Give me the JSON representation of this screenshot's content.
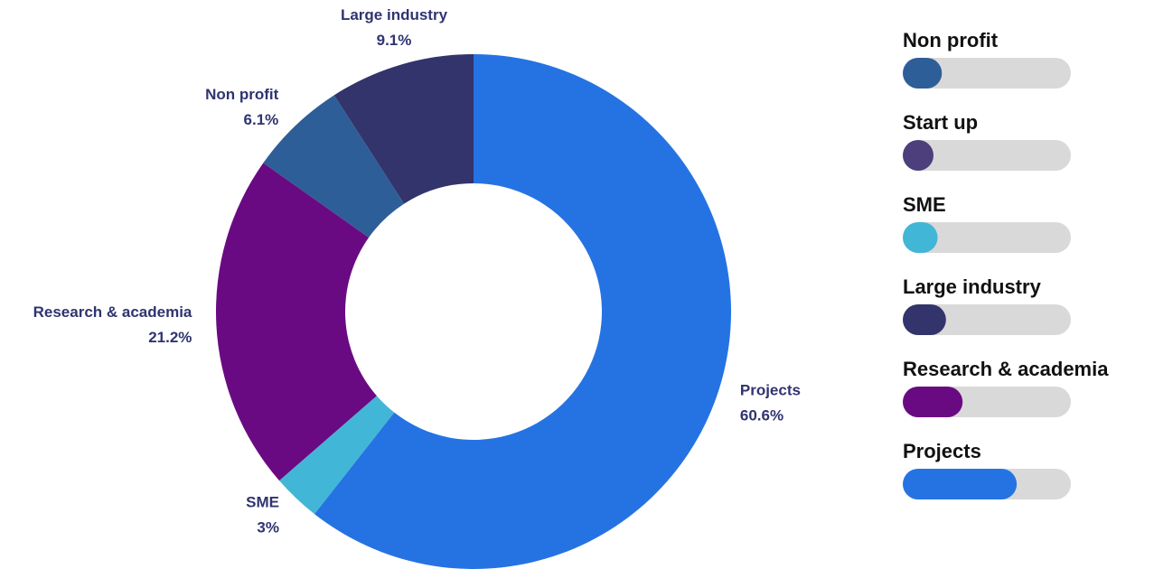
{
  "chart_data": {
    "type": "donut",
    "categories": [
      "Projects",
      "SME",
      "Research & academia",
      "Non profit",
      "Large industry"
    ],
    "values": [
      60.6,
      3,
      21.2,
      6.1,
      9.1
    ],
    "value_labels": [
      "60.6%",
      "3%",
      "21.2%",
      "6.1%",
      "9.1%"
    ],
    "colors": [
      "#2573e3",
      "#42b6d6",
      "#6a0a82",
      "#2e5e98",
      "#32346b"
    ]
  },
  "legend": {
    "items": [
      {
        "name": "Non profit",
        "color": "#2e5e98",
        "value": 6.1
      },
      {
        "name": "Start up",
        "color": "#4c3f7c",
        "value": 0
      },
      {
        "name": "SME",
        "color": "#42b6d6",
        "value": 3
      },
      {
        "name": "Large industry",
        "color": "#32346b",
        "value": 9.1
      },
      {
        "name": "Research & academia",
        "color": "#6a0a82",
        "value": 21.2
      },
      {
        "name": "Projects",
        "color": "#2573e3",
        "value": 60.6
      }
    ]
  }
}
